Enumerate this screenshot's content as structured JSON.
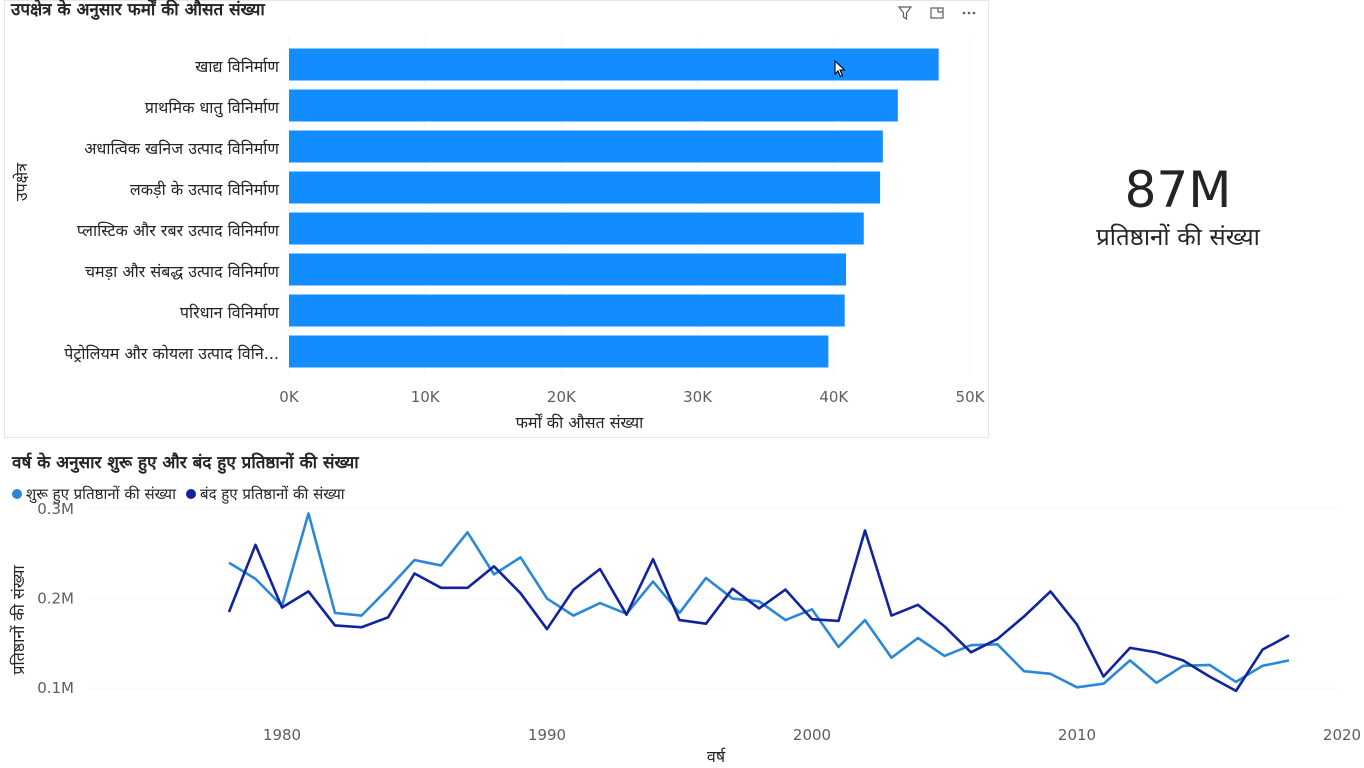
{
  "bar_chart": {
    "title": "उपक्षेत्र के अनुसार फर्मों की औसत संख्या",
    "toolbar": {
      "filter_icon": "filter-icon",
      "focus_icon": "focus-mode-icon",
      "more_icon": "more-options-icon"
    }
  },
  "kpi": {
    "value": "87M",
    "label": "प्रतिष्ठानों की संख्या"
  },
  "line_chart": {
    "title": "वर्ष के अनुसार शुरू हुए और बंद हुए प्रतिष्ठानों की संख्या"
  },
  "chart_data": [
    {
      "type": "bar",
      "orientation": "horizontal",
      "title": "उपक्षेत्र के अनुसार फर्मों की औसत संख्या",
      "xlabel": "फर्मों की औसत संख्या",
      "ylabel": "उपक्षेत्र",
      "categories": [
        "खाद्य विनिर्माण",
        "प्राथमिक धातु विनिर्माण",
        "अधात्विक खनिज उत्पाद विनिर्माण",
        "लकड़ी के उत्पाद विनिर्माण",
        "प्लास्टिक और रबर उत्पाद विनिर्माण",
        "चमड़ा और संबद्ध उत्पाद विनिर्माण",
        "परिधान विनिर्माण",
        "पेट्रोलियम और कोयला उत्पाद विनि..."
      ],
      "values": [
        47700,
        44700,
        43600,
        43400,
        42200,
        40900,
        40800,
        39600
      ],
      "xlim": [
        0,
        50000
      ],
      "xticks": [
        "0K",
        "10K",
        "20K",
        "30K",
        "40K",
        "50K"
      ],
      "color": "#118DFF",
      "grid": true
    },
    {
      "type": "line",
      "title": "वर्ष के अनुसार शुरू हुए और बंद हुए प्रतिष्ठानों की संख्या",
      "xlabel": "वर्ष",
      "ylabel": "प्रतिष्ठानों की संख्या",
      "xlim": [
        1972,
        2020
      ],
      "xticks": [
        "1980",
        "1990",
        "2000",
        "2010",
        "2020"
      ],
      "ylim": [
        0.05,
        0.31
      ],
      "yticks": [
        "0.3M",
        "0.2M",
        "0.1M"
      ],
      "legend": "top-left",
      "x": [
        1978,
        1979,
        1980,
        1981,
        1982,
        1983,
        1984,
        1985,
        1986,
        1987,
        1988,
        1989,
        1990,
        1991,
        1992,
        1993,
        1994,
        1995,
        1996,
        1997,
        1998,
        1999,
        2000,
        2001,
        2002,
        2003,
        2004,
        2005,
        2006,
        2007,
        2008,
        2009,
        2010,
        2011,
        2012,
        2013,
        2014,
        2015,
        2016,
        2017,
        2018
      ],
      "series": [
        {
          "name": "शुरू हुए प्रतिष्ठानों की संख्या",
          "color": "#2B88D8",
          "values": [
            0.24,
            0.222,
            0.192,
            0.295,
            0.184,
            0.181,
            0.211,
            0.243,
            0.237,
            0.274,
            0.227,
            0.246,
            0.2,
            0.181,
            0.195,
            0.183,
            0.219,
            0.184,
            0.223,
            0.2,
            0.197,
            0.176,
            0.188,
            0.146,
            0.176,
            0.134,
            0.156,
            0.136,
            0.148,
            0.149,
            0.119,
            0.116,
            0.101,
            0.105,
            0.131,
            0.106,
            0.125,
            0.126,
            0.107,
            0.125,
            0.131
          ]
        },
        {
          "name": "बंद हुए प्रतिष्ठानों की संख्या",
          "color": "#12239E",
          "values": [
            0.185,
            0.26,
            0.19,
            0.208,
            0.17,
            0.168,
            0.179,
            0.228,
            0.212,
            0.212,
            0.236,
            0.206,
            0.166,
            0.21,
            0.233,
            0.182,
            0.244,
            0.176,
            0.172,
            0.211,
            0.189,
            0.21,
            0.177,
            0.175,
            0.276,
            0.181,
            0.193,
            0.169,
            0.14,
            0.155,
            0.18,
            0.208,
            0.171,
            0.113,
            0.145,
            0.14,
            0.131,
            0.113,
            0.097,
            0.143,
            0.159
          ]
        }
      ]
    }
  ]
}
